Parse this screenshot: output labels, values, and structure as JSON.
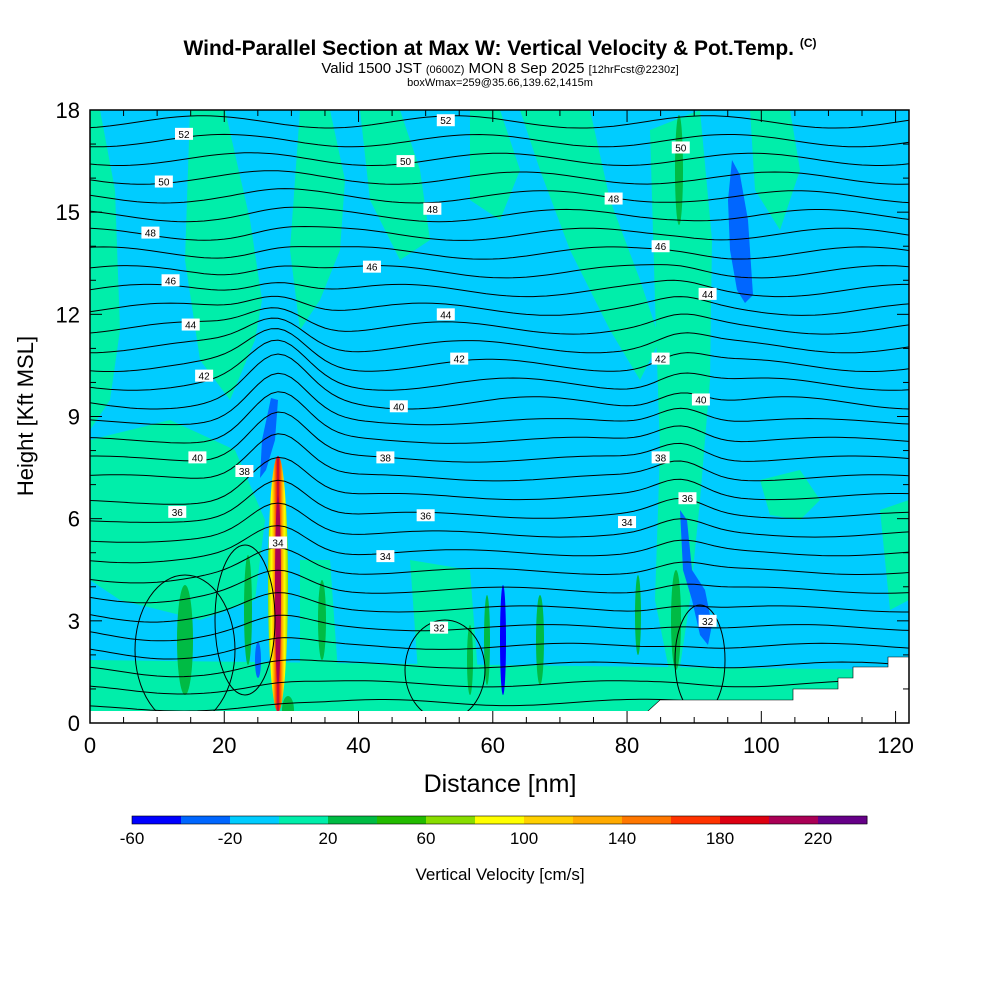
{
  "chart_data": {
    "type": "heatmap",
    "title": "Wind-Parallel Section at Max W: Vertical Velocity & Pot.Temp.",
    "title_mark": "(C)",
    "subtitle_main": "Valid 1500 JST",
    "subtitle_utc": "(0600Z)",
    "subtitle_date": "MON 8 Sep 2025",
    "subtitle_fcst": "[12hrFcst@2230z]",
    "subtitle2": "boxWmax=259@35.66,139.62,1415m",
    "xlabel": "Distance [nm]",
    "ylabel": "Height [Kft MSL]",
    "xlim": [
      0,
      122
    ],
    "ylim": [
      0,
      18
    ],
    "x_ticks": [
      "0",
      "20",
      "40",
      "60",
      "80",
      "100",
      "120"
    ],
    "y_ticks": [
      "0",
      "3",
      "6",
      "9",
      "12",
      "15",
      "18"
    ],
    "colorbar": {
      "label": "Vertical Velocity [cm/s]",
      "tick_labels": [
        "-60",
        "-20",
        "20",
        "60",
        "100",
        "140",
        "180",
        "220"
      ],
      "levels": [
        -60,
        -40,
        -20,
        0,
        20,
        40,
        60,
        80,
        100,
        120,
        140,
        160,
        180,
        200,
        220,
        240
      ],
      "colors": [
        "#0000ff",
        "#0066ff",
        "#00ccff",
        "#00eeaa",
        "#00bb44",
        "#22bb00",
        "#88dd00",
        "#ffff00",
        "#ffd000",
        "#ffaa00",
        "#ff7700",
        "#ff3300",
        "#dd0011",
        "#aa0055",
        "#660088"
      ]
    },
    "theta_contour_labels": [
      {
        "text": "52",
        "x": 14,
        "y": 17.3
      },
      {
        "text": "52",
        "x": 53,
        "y": 17.7
      },
      {
        "text": "50",
        "x": 11,
        "y": 15.9
      },
      {
        "text": "50",
        "x": 47,
        "y": 16.5
      },
      {
        "text": "50",
        "x": 88,
        "y": 16.9
      },
      {
        "text": "48",
        "x": 9,
        "y": 14.4
      },
      {
        "text": "48",
        "x": 51,
        "y": 15.1
      },
      {
        "text": "48",
        "x": 78,
        "y": 15.4
      },
      {
        "text": "46",
        "x": 12,
        "y": 13.0
      },
      {
        "text": "46",
        "x": 42,
        "y": 13.4
      },
      {
        "text": "46",
        "x": 85,
        "y": 14.0
      },
      {
        "text": "44",
        "x": 15,
        "y": 11.7
      },
      {
        "text": "44",
        "x": 53,
        "y": 12.0
      },
      {
        "text": "44",
        "x": 92,
        "y": 12.6
      },
      {
        "text": "42",
        "x": 17,
        "y": 10.2
      },
      {
        "text": "42",
        "x": 55,
        "y": 10.7
      },
      {
        "text": "42",
        "x": 85,
        "y": 10.7
      },
      {
        "text": "40",
        "x": 16,
        "y": 7.8
      },
      {
        "text": "40",
        "x": 46,
        "y": 9.3
      },
      {
        "text": "40",
        "x": 91,
        "y": 9.5
      },
      {
        "text": "38",
        "x": 23,
        "y": 7.4
      },
      {
        "text": "38",
        "x": 44,
        "y": 7.8
      },
      {
        "text": "38",
        "x": 85,
        "y": 7.8
      },
      {
        "text": "36",
        "x": 13,
        "y": 6.2
      },
      {
        "text": "36",
        "x": 50,
        "y": 6.1
      },
      {
        "text": "36",
        "x": 89,
        "y": 6.6
      },
      {
        "text": "34",
        "x": 28,
        "y": 5.3
      },
      {
        "text": "34",
        "x": 44,
        "y": 4.9
      },
      {
        "text": "34",
        "x": 80,
        "y": 5.9
      },
      {
        "text": "32",
        "x": 52,
        "y": 2.8
      },
      {
        "text": "32",
        "x": 92,
        "y": 3.0
      }
    ]
  }
}
